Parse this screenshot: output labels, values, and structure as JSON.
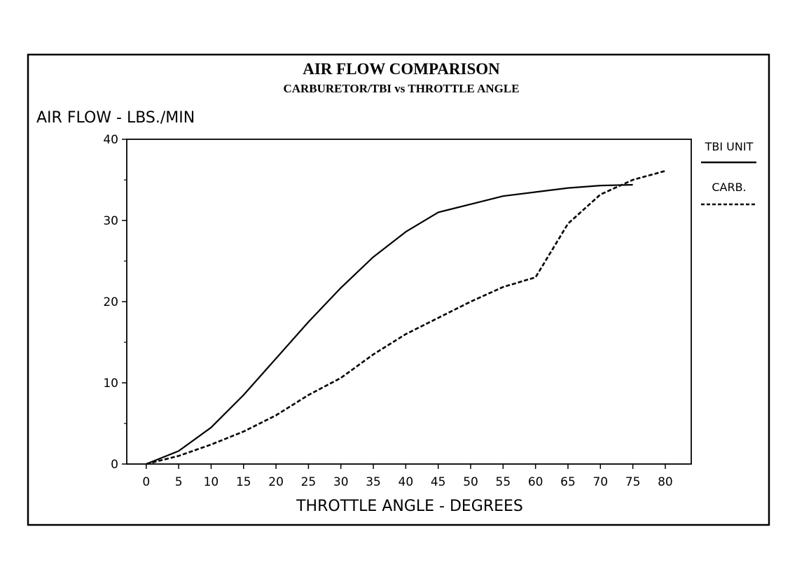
{
  "chart_data": {
    "type": "line",
    "title": "AIR FLOW COMPARISON",
    "subtitle": "CARBURETOR/TBI vs THROTTLE ANGLE",
    "xlabel": "THROTTLE ANGLE - DEGREES",
    "ylabel": "AIR FLOW - LBS./MIN",
    "xlim": [
      -3,
      84
    ],
    "ylim": [
      0,
      40
    ],
    "xticks": [
      0,
      5,
      10,
      15,
      20,
      25,
      30,
      35,
      40,
      45,
      50,
      55,
      60,
      65,
      70,
      75,
      80
    ],
    "yticks": [
      0,
      10,
      20,
      30,
      40
    ],
    "legend_position": "right",
    "grid": false,
    "series": [
      {
        "name": "TBI UNIT",
        "style": "solid",
        "points": [
          [
            0,
            0
          ],
          [
            5,
            1.6
          ],
          [
            10,
            4.5
          ],
          [
            15,
            8.5
          ],
          [
            20,
            13
          ],
          [
            25,
            17.5
          ],
          [
            30,
            21.7
          ],
          [
            35,
            25.5
          ],
          [
            40,
            28.6
          ],
          [
            45,
            31
          ],
          [
            50,
            32
          ],
          [
            55,
            33
          ],
          [
            60,
            33.5
          ],
          [
            65,
            34
          ],
          [
            70,
            34.3
          ],
          [
            75,
            34.4
          ]
        ]
      },
      {
        "name": "CARB.",
        "style": "dashed",
        "points": [
          [
            0,
            0
          ],
          [
            5,
            1
          ],
          [
            10,
            2.4
          ],
          [
            15,
            4
          ],
          [
            20,
            6
          ],
          [
            25,
            8.5
          ],
          [
            30,
            10.6
          ],
          [
            35,
            13.5
          ],
          [
            40,
            16
          ],
          [
            45,
            18
          ],
          [
            50,
            20
          ],
          [
            55,
            21.8
          ],
          [
            60,
            23
          ],
          [
            65,
            29.6
          ],
          [
            70,
            33.2
          ],
          [
            75,
            35
          ],
          [
            80,
            36.1
          ]
        ]
      }
    ]
  }
}
